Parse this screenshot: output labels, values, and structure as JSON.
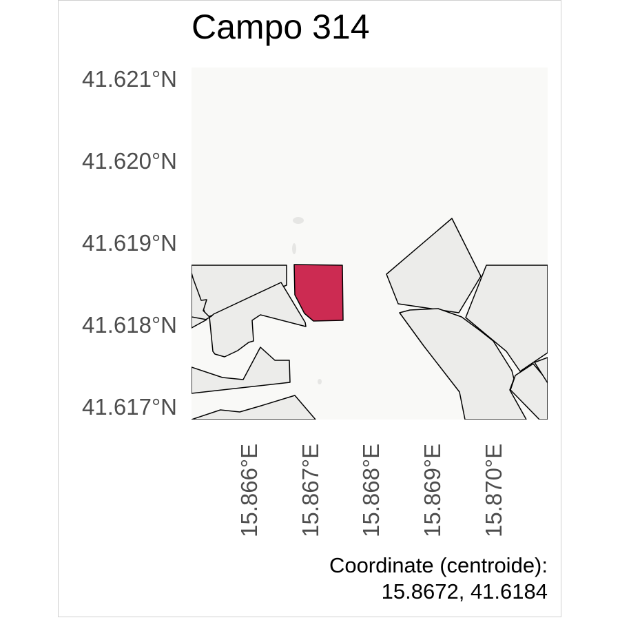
{
  "title": "Campo 314",
  "y_axis": {
    "ticks": [
      {
        "label": "41.621°N",
        "value": 41.621
      },
      {
        "label": "41.620°N",
        "value": 41.62
      },
      {
        "label": "41.619°N",
        "value": 41.619
      },
      {
        "label": "41.618°N",
        "value": 41.618
      },
      {
        "label": "41.617°N",
        "value": 41.617
      }
    ]
  },
  "x_axis": {
    "ticks": [
      {
        "label": "15.866°E",
        "value": 15.866
      },
      {
        "label": "15.867°E",
        "value": 15.867
      },
      {
        "label": "15.868°E",
        "value": 15.868
      },
      {
        "label": "15.869°E",
        "value": 15.869
      },
      {
        "label": "15.870°E",
        "value": 15.87
      }
    ]
  },
  "caption": {
    "line1": "Coordinate (centroide):",
    "line2": "15.8672, 41.6184"
  },
  "colors": {
    "highlight_field": "#cc2b52",
    "other_fields": "#ececea",
    "background": "#f9f9f7",
    "outline": "#000000",
    "axis_text": "#4d4d4d"
  },
  "highlighted_field": {
    "name": "Campo 314",
    "centroid": {
      "lon": 15.8672,
      "lat": 41.6184
    }
  }
}
